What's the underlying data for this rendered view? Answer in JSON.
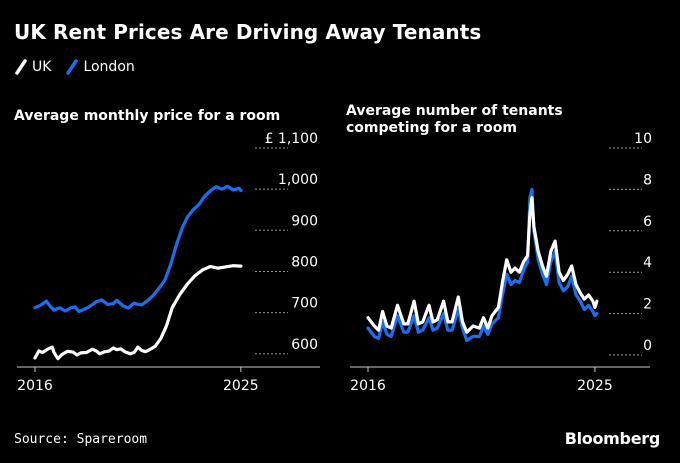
{
  "title": "UK Rent Prices Are Driving Away Tenants",
  "legend": [
    {
      "label": "UK",
      "color": "#ffffff"
    },
    {
      "label": "London",
      "color": "#1a6ff0"
    }
  ],
  "source": "Source: Spareroom",
  "brand": "Bloomberg",
  "chart_data": [
    {
      "type": "line",
      "title": "Average monthly price for a room",
      "xlabel": "",
      "ylabel": "",
      "x_ticks": [
        "2016",
        "2025"
      ],
      "y_ticks": [
        "£ 1,100",
        "1,000",
        "900",
        "800",
        "700",
        "600"
      ],
      "y_tick_values": [
        1100,
        1000,
        900,
        800,
        700,
        600
      ],
      "ylim": [
        580,
        1100
      ],
      "xlim": [
        2016.0,
        2025.4
      ],
      "grid": false,
      "series": [
        {
          "name": "UK",
          "color": "#ffffff",
          "points": [
            [
              2016.0,
              590
            ],
            [
              2016.17,
              607
            ],
            [
              2016.33,
              603
            ],
            [
              2016.58,
              612
            ],
            [
              2016.75,
              616
            ],
            [
              2016.83,
              603
            ],
            [
              2017.0,
              588
            ],
            [
              2017.17,
              598
            ],
            [
              2017.42,
              606
            ],
            [
              2017.67,
              604
            ],
            [
              2017.83,
              597
            ],
            [
              2018.0,
              602
            ],
            [
              2018.25,
              603
            ],
            [
              2018.5,
              611
            ],
            [
              2018.67,
              607
            ],
            [
              2018.83,
              600
            ],
            [
              2019.0,
              604
            ],
            [
              2019.25,
              607
            ],
            [
              2019.42,
              614
            ],
            [
              2019.58,
              610
            ],
            [
              2019.75,
              612
            ],
            [
              2019.92,
              605
            ],
            [
              2020.17,
              600
            ],
            [
              2020.33,
              603
            ],
            [
              2020.5,
              616
            ],
            [
              2020.67,
              608
            ],
            [
              2020.83,
              605
            ],
            [
              2021.0,
              610
            ],
            [
              2021.25,
              618
            ],
            [
              2021.5,
              637
            ],
            [
              2021.75,
              668
            ],
            [
              2022.0,
              712
            ],
            [
              2022.33,
              744
            ],
            [
              2022.67,
              770
            ],
            [
              2023.0,
              790
            ],
            [
              2023.33,
              804
            ],
            [
              2023.67,
              812
            ],
            [
              2024.0,
              808
            ],
            [
              2024.33,
              811
            ],
            [
              2024.67,
              814
            ],
            [
              2025.0,
              813
            ]
          ]
        },
        {
          "name": "London",
          "color": "#1a6ff0",
          "points": [
            [
              2016.0,
              712
            ],
            [
              2016.25,
              718
            ],
            [
              2016.5,
              728
            ],
            [
              2016.67,
              715
            ],
            [
              2016.83,
              706
            ],
            [
              2017.08,
              712
            ],
            [
              2017.33,
              704
            ],
            [
              2017.58,
              712
            ],
            [
              2017.75,
              714
            ],
            [
              2017.92,
              703
            ],
            [
              2018.17,
              708
            ],
            [
              2018.42,
              716
            ],
            [
              2018.67,
              726
            ],
            [
              2018.92,
              731
            ],
            [
              2019.17,
              720
            ],
            [
              2019.42,
              722
            ],
            [
              2019.58,
              730
            ],
            [
              2019.83,
              717
            ],
            [
              2020.08,
              711
            ],
            [
              2020.33,
              723
            ],
            [
              2020.5,
              720
            ],
            [
              2020.67,
              719
            ],
            [
              2020.92,
              729
            ],
            [
              2021.17,
              742
            ],
            [
              2021.42,
              759
            ],
            [
              2021.67,
              778
            ],
            [
              2021.92,
              815
            ],
            [
              2022.17,
              862
            ],
            [
              2022.42,
              904
            ],
            [
              2022.67,
              933
            ],
            [
              2022.92,
              950
            ],
            [
              2023.17,
              963
            ],
            [
              2023.42,
              983
            ],
            [
              2023.67,
              996
            ],
            [
              2023.92,
              1006
            ],
            [
              2024.17,
              1000
            ],
            [
              2024.42,
              1007
            ],
            [
              2024.67,
              998
            ],
            [
              2024.92,
              1002
            ],
            [
              2025.0,
              997
            ]
          ]
        }
      ]
    },
    {
      "type": "line",
      "title": "Average number of tenants competing for a room",
      "xlabel": "",
      "ylabel": "",
      "x_ticks": [
        "2016",
        "2025"
      ],
      "y_ticks": [
        "10",
        "8",
        "6",
        "4",
        "2",
        "0"
      ],
      "y_tick_values": [
        10,
        8,
        6,
        4,
        2,
        0
      ],
      "ylim": [
        0,
        10
      ],
      "xlim": [
        2016.0,
        2025.4
      ],
      "grid": false,
      "series": [
        {
          "name": "UK",
          "color": "#ffffff",
          "points": [
            [
              2016.0,
              1.8
            ],
            [
              2016.25,
              1.4
            ],
            [
              2016.42,
              1.2
            ],
            [
              2016.58,
              2.1
            ],
            [
              2016.75,
              1.4
            ],
            [
              2016.92,
              1.3
            ],
            [
              2017.17,
              2.4
            ],
            [
              2017.42,
              1.5
            ],
            [
              2017.58,
              1.5
            ],
            [
              2017.83,
              2.6
            ],
            [
              2018.0,
              1.5
            ],
            [
              2018.17,
              1.6
            ],
            [
              2018.42,
              2.4
            ],
            [
              2018.58,
              1.6
            ],
            [
              2018.75,
              1.7
            ],
            [
              2019.0,
              2.6
            ],
            [
              2019.17,
              1.6
            ],
            [
              2019.33,
              1.6
            ],
            [
              2019.58,
              2.8
            ],
            [
              2019.75,
              1.6
            ],
            [
              2019.92,
              1.1
            ],
            [
              2020.17,
              1.4
            ],
            [
              2020.42,
              1.3
            ],
            [
              2020.58,
              1.8
            ],
            [
              2020.75,
              1.3
            ],
            [
              2020.92,
              1.9
            ],
            [
              2021.17,
              2.3
            ],
            [
              2021.33,
              3.5
            ],
            [
              2021.5,
              4.6
            ],
            [
              2021.67,
              4.0
            ],
            [
              2021.83,
              4.2
            ],
            [
              2022.0,
              4.0
            ],
            [
              2022.17,
              4.5
            ],
            [
              2022.33,
              4.8
            ],
            [
              2022.42,
              6.8
            ],
            [
              2022.5,
              7.6
            ],
            [
              2022.58,
              6.2
            ],
            [
              2022.75,
              5.0
            ],
            [
              2022.92,
              4.3
            ],
            [
              2023.08,
              3.8
            ],
            [
              2023.25,
              5.0
            ],
            [
              2023.42,
              5.5
            ],
            [
              2023.58,
              4.0
            ],
            [
              2023.75,
              3.6
            ],
            [
              2023.92,
              3.9
            ],
            [
              2024.08,
              4.3
            ],
            [
              2024.25,
              3.4
            ],
            [
              2024.42,
              3.0
            ],
            [
              2024.58,
              2.7
            ],
            [
              2024.75,
              2.9
            ],
            [
              2024.92,
              2.6
            ],
            [
              2025.0,
              2.3
            ],
            [
              2025.08,
              2.6
            ]
          ]
        },
        {
          "name": "London",
          "color": "#1a6ff0",
          "points": [
            [
              2016.0,
              1.3
            ],
            [
              2016.25,
              0.9
            ],
            [
              2016.42,
              0.8
            ],
            [
              2016.58,
              1.6
            ],
            [
              2016.75,
              1.0
            ],
            [
              2016.92,
              0.9
            ],
            [
              2017.17,
              1.9
            ],
            [
              2017.42,
              1.1
            ],
            [
              2017.58,
              1.1
            ],
            [
              2017.83,
              1.9
            ],
            [
              2018.0,
              1.1
            ],
            [
              2018.17,
              1.2
            ],
            [
              2018.42,
              1.8
            ],
            [
              2018.58,
              1.2
            ],
            [
              2018.75,
              1.3
            ],
            [
              2019.0,
              2.0
            ],
            [
              2019.17,
              1.2
            ],
            [
              2019.33,
              1.2
            ],
            [
              2019.58,
              2.2
            ],
            [
              2019.75,
              1.3
            ],
            [
              2019.92,
              0.7
            ],
            [
              2020.17,
              0.9
            ],
            [
              2020.42,
              0.9
            ],
            [
              2020.58,
              1.4
            ],
            [
              2020.75,
              1.0
            ],
            [
              2020.92,
              1.5
            ],
            [
              2021.17,
              1.8
            ],
            [
              2021.33,
              2.9
            ],
            [
              2021.5,
              3.9
            ],
            [
              2021.67,
              3.4
            ],
            [
              2021.83,
              3.6
            ],
            [
              2022.0,
              3.5
            ],
            [
              2022.17,
              4.1
            ],
            [
              2022.33,
              4.5
            ],
            [
              2022.42,
              7.6
            ],
            [
              2022.5,
              8.0
            ],
            [
              2022.58,
              6.0
            ],
            [
              2022.75,
              4.6
            ],
            [
              2022.92,
              3.9
            ],
            [
              2023.08,
              3.4
            ],
            [
              2023.25,
              4.5
            ],
            [
              2023.42,
              5.0
            ],
            [
              2023.58,
              3.5
            ],
            [
              2023.75,
              3.1
            ],
            [
              2023.92,
              3.3
            ],
            [
              2024.08,
              3.8
            ],
            [
              2024.25,
              2.9
            ],
            [
              2024.42,
              2.6
            ],
            [
              2024.58,
              2.2
            ],
            [
              2024.75,
              2.4
            ],
            [
              2024.92,
              2.1
            ],
            [
              2025.0,
              1.9
            ],
            [
              2025.08,
              2.0
            ]
          ]
        }
      ]
    }
  ]
}
